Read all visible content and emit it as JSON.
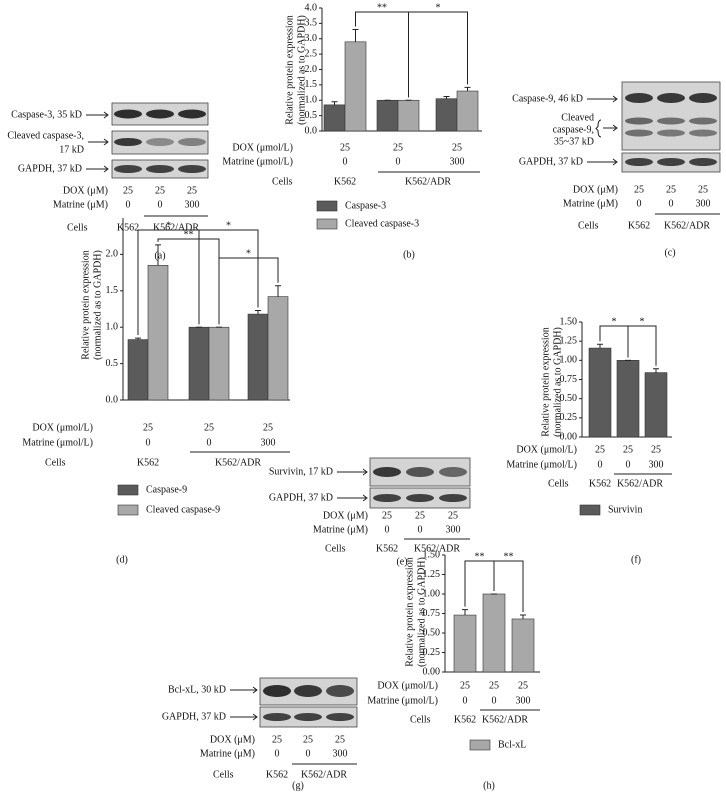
{
  "chart_data": [
    {
      "type": "bar",
      "panel": "(b)",
      "ylabel": [
        "Relative protein expression",
        "(normalized as to GAPDH)"
      ],
      "ylim": [
        0,
        4
      ],
      "yticks": [
        {
          "value": 0,
          "label": "0.0"
        },
        0.5,
        {
          "value": 1,
          "label": "1.0"
        },
        1.5,
        {
          "value": 2,
          "label": "2.0"
        },
        2.5,
        {
          "value": 3,
          "label": "3.0"
        },
        3.5,
        {
          "value": 4,
          "label": "4.0"
        }
      ],
      "series": [
        {
          "name": "Caspase-3",
          "color": "#5b5b5b",
          "values": [
            0.85,
            1.0,
            1.05
          ],
          "errors": [
            0.1,
            0,
            0.07
          ]
        },
        {
          "name": "Cleaved caspase-3",
          "color": "#a8a8a8",
          "values": [
            2.9,
            1.0,
            1.3
          ],
          "errors": [
            0.4,
            0,
            0.12
          ]
        }
      ],
      "annotations": [
        "**",
        "*"
      ],
      "conditions": [
        {
          "label": "DOX (μmol/L)",
          "values": [
            25,
            25,
            25
          ]
        },
        {
          "label": "Matrine (μmol/L)",
          "values": [
            0,
            0,
            300
          ]
        }
      ],
      "cells_label": "Cells",
      "cells": [
        "K562",
        "K562/ADR"
      ]
    },
    {
      "type": "bar",
      "panel": "(d)",
      "ylabel": [
        "Relative protein expression",
        "(normalized as to GAPDH)"
      ],
      "ylim": [
        0,
        2.5
      ],
      "yticks": [
        {
          "value": 0,
          "label": "0.0"
        },
        0.5,
        {
          "value": 1,
          "label": "1.0"
        },
        1.5,
        {
          "value": 2,
          "label": "2.0"
        }
      ],
      "series": [
        {
          "name": "Caspase-9",
          "color": "#5b5b5b",
          "values": [
            0.83,
            1.0,
            1.18
          ],
          "errors": [
            0.02,
            0,
            0.05
          ]
        },
        {
          "name": "Cleaved caspase-9",
          "color": "#a8a8a8",
          "values": [
            1.85,
            1.0,
            1.42
          ],
          "errors": [
            0.28,
            0,
            0.15
          ]
        }
      ],
      "annotations": [
        "*",
        "**",
        "*",
        "*"
      ],
      "conditions": [
        {
          "label": "DOX (μmol/L)",
          "values": [
            25,
            25,
            25
          ]
        },
        {
          "label": "Matrine (μmol/L)",
          "values": [
            0,
            0,
            300
          ]
        }
      ],
      "cells_label": "Cells",
      "cells": [
        "K562",
        "K562/ADR"
      ]
    },
    {
      "type": "bar",
      "panel": "(f)",
      "ylabel": [
        "Relative protein expression",
        "(normalized as to GAPDH)"
      ],
      "ylim": [
        0,
        1.5
      ],
      "yticks": [
        {
          "value": 0,
          "label": "0.00"
        },
        0.25,
        {
          "value": 0.5,
          "label": "0.50"
        },
        0.75,
        {
          "value": 1,
          "label": "1.00"
        },
        1.25,
        {
          "value": 1.5,
          "label": "1.50"
        }
      ],
      "series": [
        {
          "name": "Survivin",
          "color": "#5b5b5b",
          "values": [
            1.16,
            1.0,
            0.84
          ],
          "errors": [
            0.05,
            0,
            0.05
          ]
        }
      ],
      "annotations": [
        "*",
        "*"
      ],
      "conditions": [
        {
          "label": "DOX (μmol/L)",
          "values": [
            25,
            25,
            25
          ]
        },
        {
          "label": "Matrine (μmol/L)",
          "values": [
            0,
            0,
            300
          ]
        }
      ],
      "cells_label": "Cells",
      "cells": [
        "K562",
        "K562/ADR"
      ]
    },
    {
      "type": "bar",
      "panel": "(h)",
      "ylabel": [
        "Relative protein expression",
        "(normalized as to GAPDH)"
      ],
      "ylim": [
        0,
        1.5
      ],
      "yticks": [
        {
          "value": 0,
          "label": "0.00"
        },
        0.25,
        {
          "value": 0.5,
          "label": "0.50"
        },
        0.75,
        {
          "value": 1,
          "label": "1.00"
        },
        1.25,
        {
          "value": 1.5,
          "label": "1.50"
        }
      ],
      "series": [
        {
          "name": "Bcl-xL",
          "color": "#a8a8a8",
          "values": [
            0.73,
            1.0,
            0.68
          ],
          "errors": [
            0.07,
            0,
            0.05
          ]
        }
      ],
      "annotations": [
        "**",
        "**"
      ],
      "conditions": [
        {
          "label": "DOX (μmol/L)",
          "values": [
            25,
            25,
            25
          ]
        },
        {
          "label": "Matrine (μmol/L)",
          "values": [
            0,
            0,
            300
          ]
        }
      ],
      "cells_label": "Cells",
      "cells": [
        "K562",
        "K562/ADR"
      ]
    }
  ],
  "blots": [
    {
      "panel": "(a)",
      "labels": [
        [
          "Caspase-3, 35 kD"
        ],
        [
          "Cleaved caspase-3,",
          "17 kD"
        ],
        [
          "GAPDH, 37 kD"
        ]
      ],
      "conditions": [
        {
          "label": "DOX (μM)",
          "values": [
            25,
            25,
            25
          ]
        },
        {
          "label": "Matrine (μM)",
          "values": [
            0,
            0,
            300
          ]
        }
      ],
      "cells_label": "Cells",
      "cells": [
        "K562",
        "K562/ADR"
      ]
    },
    {
      "panel": "(c)",
      "labels": [
        [
          "Caspase-9, 46 kD"
        ],
        [
          "Cleaved",
          "caspase-9,",
          "35~37 kD"
        ],
        [
          "GAPDH, 37 kD"
        ]
      ],
      "conditions": [
        {
          "label": "DOX (μM)",
          "values": [
            25,
            25,
            25
          ]
        },
        {
          "label": "Matrine (μM)",
          "values": [
            0,
            0,
            300
          ]
        }
      ],
      "cells_label": "Cells",
      "cells": [
        "K562",
        "K562/ADR"
      ]
    },
    {
      "panel": "(e)",
      "labels": [
        [
          "Survivin, 17 kD"
        ],
        [
          "GAPDH, 37 kD"
        ]
      ],
      "conditions": [
        {
          "label": "DOX (μM)",
          "values": [
            25,
            25,
            25
          ]
        },
        {
          "label": "Matrine (μM)",
          "values": [
            0,
            0,
            300
          ]
        }
      ],
      "cells_label": "Cells",
      "cells": [
        "K562",
        "K562/ADR"
      ]
    },
    {
      "panel": "(g)",
      "labels": [
        [
          "Bcl-xL, 30 kD"
        ],
        [
          "GAPDH, 37 kD"
        ]
      ],
      "conditions": [
        {
          "label": "DOX (μM)",
          "values": [
            25,
            25,
            25
          ]
        },
        {
          "label": "Matrine (μM)",
          "values": [
            0,
            0,
            300
          ]
        }
      ],
      "cells_label": "Cells",
      "cells": [
        "K562",
        "K562/ADR"
      ]
    }
  ]
}
